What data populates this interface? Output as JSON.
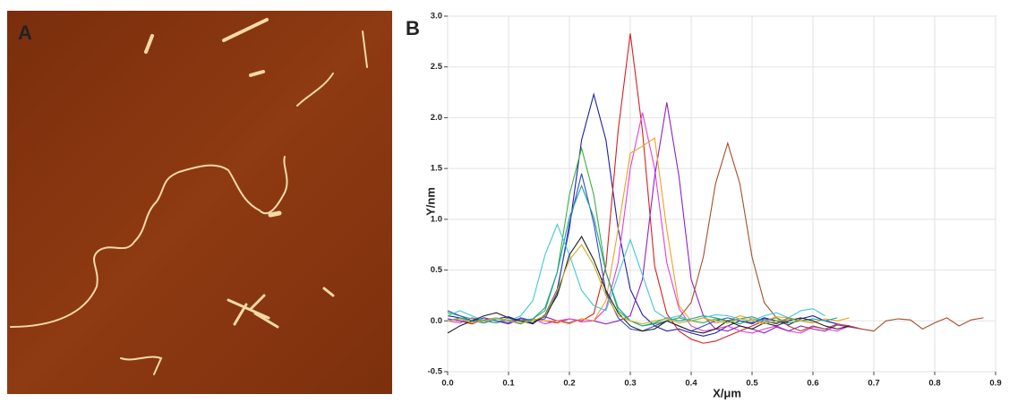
{
  "panels": [
    "A",
    "B"
  ],
  "chart_data": {
    "type": "line",
    "x_label": "X/μm",
    "y_label": "Y/nm",
    "x": [
      0,
      0.02,
      0.04,
      0.06,
      0.08,
      0.1,
      0.12,
      0.14,
      0.16,
      0.18,
      0.2,
      0.22,
      0.24,
      0.26,
      0.28,
      0.3,
      0.32,
      0.34,
      0.36,
      0.38,
      0.4,
      0.42,
      0.44,
      0.46,
      0.48,
      0.5,
      0.52,
      0.54,
      0.56,
      0.58,
      0.6,
      0.62,
      0.64,
      0.66,
      0.68,
      0.7,
      0.72,
      0.74,
      0.76,
      0.78,
      0.8,
      0.82,
      0.84,
      0.86,
      0.88
    ],
    "xlim": [
      0,
      0.9
    ],
    "xticks": [
      {
        "value": 0,
        "label": "0.0"
      },
      0.1,
      0.2,
      0.3,
      0.4,
      0.5,
      0.6,
      0.7,
      0.8,
      0.9
    ],
    "ylim": [
      -0.5,
      3
    ],
    "yticks": [
      -0.5,
      {
        "value": 0,
        "label": "0.0"
      },
      0.5,
      {
        "value": 1,
        "label": "1.0"
      },
      1.5,
      {
        "value": 2,
        "label": "2.0"
      },
      2.5,
      {
        "value": 3,
        "label": "3.0"
      }
    ],
    "grid": true,
    "series": [
      {
        "color": "#1f1fa8",
        "values": [
          0.05,
          0.03,
          0.0,
          -0.02,
          0.02,
          0.04,
          0.0,
          -0.03,
          0.06,
          0.31,
          0.91,
          1.78,
          2.23,
          1.78,
          0.91,
          0.31,
          0.06,
          -0.05,
          -0.1,
          -0.08,
          -0.12,
          -0.15,
          -0.12,
          -0.05,
          0.0,
          -0.02,
          0.03,
          0.0,
          -0.04,
          0.02,
          0.05,
          0.0,
          -0.03,
          null,
          null,
          null,
          null,
          null,
          null,
          null,
          null,
          null,
          null,
          null,
          null
        ]
      },
      {
        "color": "#d62020",
        "values": [
          0.02,
          0.0,
          -0.03,
          0.01,
          0.03,
          0.0,
          -0.02,
          0.02,
          0.0,
          -0.02,
          0.02,
          0.0,
          0.07,
          0.54,
          1.87,
          2.83,
          1.87,
          0.54,
          0.07,
          -0.1,
          -0.18,
          -0.22,
          -0.2,
          -0.15,
          -0.1,
          -0.05,
          0.0,
          -0.03,
          0.02,
          0.0,
          -0.02,
          null,
          null,
          null,
          null,
          null,
          null,
          null,
          null,
          null,
          null,
          null,
          null,
          null,
          null
        ]
      },
      {
        "color": "#e040e0",
        "values": [
          0.0,
          -0.02,
          0.03,
          0.0,
          -0.02,
          0.01,
          0.0,
          0.02,
          -0.03,
          0.0,
          0.02,
          -0.01,
          0.0,
          0.12,
          0.57,
          1.5,
          2.05,
          1.5,
          0.57,
          0.12,
          -0.05,
          -0.1,
          -0.08,
          -0.05,
          -0.1,
          -0.12,
          -0.08,
          -0.05,
          -0.1,
          -0.12,
          -0.06,
          -0.08,
          -0.1,
          -0.05,
          -0.08,
          -0.1,
          null,
          null,
          null,
          null,
          null,
          null,
          null,
          null,
          null
        ]
      },
      {
        "color": "#9020c0",
        "values": [
          0.02,
          0.0,
          -0.02,
          0.03,
          0.0,
          -0.03,
          0.02,
          0.0,
          0.04,
          0.0,
          -0.02,
          0.02,
          0.0,
          -0.03,
          0.0,
          0.05,
          0.41,
          1.42,
          2.15,
          1.42,
          0.41,
          0.05,
          -0.08,
          -0.1,
          -0.05,
          -0.08,
          -0.12,
          -0.06,
          -0.1,
          -0.05,
          -0.08,
          -0.1,
          -0.04,
          -0.06,
          -0.08,
          null,
          null,
          null,
          null,
          null,
          null,
          null,
          null,
          null,
          null
        ]
      },
      {
        "color": "#a0522d",
        "values": [
          null,
          null,
          null,
          null,
          null,
          null,
          null,
          null,
          null,
          null,
          null,
          null,
          null,
          null,
          null,
          null,
          null,
          -0.05,
          0.0,
          0.03,
          0.18,
          0.63,
          1.35,
          1.75,
          1.35,
          0.63,
          0.18,
          0.03,
          -0.05,
          -0.1,
          -0.05,
          -0.08,
          -0.03,
          -0.05,
          -0.08,
          -0.1,
          0.0,
          0.02,
          0.01,
          -0.08,
          -0.02,
          0.03,
          -0.05,
          0.01,
          0.03
        ]
      },
      {
        "color": "#3cb043",
        "values": [
          0.08,
          0.05,
          0.02,
          0.0,
          -0.02,
          0.03,
          0.0,
          0.02,
          0.1,
          0.48,
          1.24,
          1.7,
          1.24,
          0.48,
          0.1,
          0.0,
          -0.05,
          -0.03,
          0.0,
          0.03,
          0.0,
          -0.02,
          0.02,
          0.0,
          -0.03,
          0.02,
          0.0,
          0.03,
          -0.02,
          0.0,
          0.02,
          null,
          null,
          null,
          null,
          null,
          null,
          null,
          null,
          null,
          null,
          null,
          null,
          null,
          null
        ]
      },
      {
        "color": "#f0a020",
        "values": [
          0.0,
          0.02,
          -0.02,
          0.0,
          0.03,
          0.0,
          -0.02,
          0.02,
          0.0,
          0.0,
          -0.03,
          0.02,
          0.0,
          0.2,
          0.9,
          1.65,
          1.72,
          1.8,
          0.9,
          0.15,
          0.0,
          0.03,
          -0.02,
          0.0,
          0.05,
          0.02,
          0.0,
          0.04,
          0.03,
          0.0,
          -0.02,
          0.02,
          0.0,
          0.03,
          null,
          null,
          null,
          null,
          null,
          null,
          null,
          null,
          null,
          null,
          null
        ]
      },
      {
        "color": "#3050c0",
        "values": [
          0.1,
          0.05,
          0.0,
          0.03,
          0.0,
          -0.02,
          0.03,
          0.0,
          0.02,
          0.28,
          0.96,
          1.45,
          0.96,
          0.28,
          0.03,
          -0.08,
          -0.1,
          -0.05,
          0.0,
          -0.05,
          -0.1,
          -0.05,
          0.0,
          0.03,
          0.0,
          -0.03,
          0.02,
          0.0,
          -0.02,
          null,
          null,
          null,
          null,
          null,
          null,
          null,
          null,
          null,
          null,
          null,
          null,
          null,
          null,
          null,
          null
        ]
      },
      {
        "color": "#20a0a0",
        "values": [
          0.0,
          0.03,
          0.0,
          -0.02,
          0.02,
          0.0,
          -0.03,
          0.02,
          0.13,
          0.48,
          1.02,
          1.33,
          1.02,
          0.48,
          0.13,
          0.0,
          -0.05,
          -0.02,
          0.03,
          0.0,
          0.02,
          0.05,
          0.03,
          0.0,
          0.02,
          0.04,
          0.0,
          -0.02,
          0.03,
          0.0,
          0.02,
          0.0,
          0.03,
          null,
          null,
          null,
          null,
          null,
          null,
          null,
          null,
          null,
          null,
          null,
          null
        ]
      },
      {
        "color": "#40c8d8",
        "values": [
          0.05,
          0.1,
          0.05,
          0.0,
          0.02,
          0.0,
          0.05,
          0.2,
          0.65,
          0.95,
          0.65,
          0.3,
          0.15,
          0.1,
          0.45,
          0.8,
          0.45,
          0.1,
          0.02,
          0.05,
          0.0,
          0.03,
          0.06,
          0.05,
          0.02,
          0.0,
          0.05,
          0.08,
          0.03,
          0.1,
          0.12,
          0.05,
          null,
          null,
          null,
          null,
          null,
          null,
          null,
          null,
          null,
          null,
          null,
          null,
          null
        ]
      },
      {
        "color": "#202020",
        "values": [
          -0.12,
          -0.05,
          0.0,
          0.05,
          0.08,
          0.03,
          0.0,
          -0.02,
          0.05,
          0.25,
          0.65,
          0.83,
          0.6,
          0.3,
          0.08,
          -0.05,
          -0.1,
          -0.08,
          0.0,
          -0.05,
          -0.1,
          -0.12,
          -0.08,
          0.0,
          -0.05,
          -0.08,
          -0.02,
          -0.05,
          0.0,
          0.03,
          0.0,
          -0.05,
          -0.08,
          -0.05,
          null,
          null,
          null,
          null,
          null,
          null,
          null,
          null,
          null,
          null,
          null
        ]
      },
      {
        "color": "#c8b020",
        "values": [
          0.0,
          0.02,
          -0.02,
          0.0,
          0.03,
          0.0,
          -0.02,
          0.0,
          0.05,
          0.3,
          0.6,
          0.75,
          0.55,
          0.25,
          0.05,
          0.0,
          -0.03,
          0.0,
          0.02,
          -0.02,
          0.0,
          0.03,
          0.0,
          -0.02,
          0.02,
          0.0,
          -0.03,
          0.0,
          0.02,
          0.0,
          -0.02,
          null,
          null,
          null,
          null,
          null,
          null,
          null,
          null,
          null,
          null,
          null,
          null,
          null,
          null
        ]
      }
    ]
  }
}
